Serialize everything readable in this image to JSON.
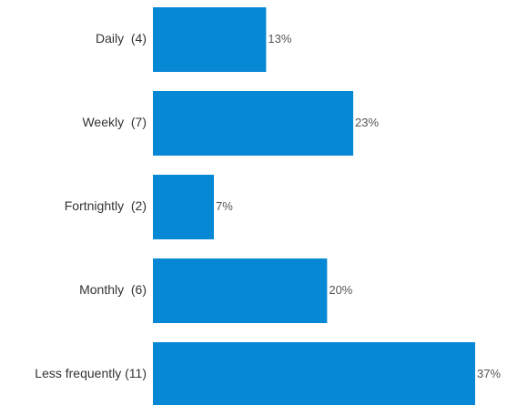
{
  "chart_data": {
    "type": "bar",
    "orientation": "horizontal",
    "categories": [
      "Daily  (4)",
      "Weekly  (7)",
      "Fortnightly  (2)",
      "Monthly  (6)",
      "Less frequently (11)"
    ],
    "values": [
      13,
      23,
      7,
      20,
      37
    ],
    "value_labels": [
      "13%",
      "23%",
      "7%",
      "20%",
      "37%"
    ],
    "color": "#0788d5"
  }
}
